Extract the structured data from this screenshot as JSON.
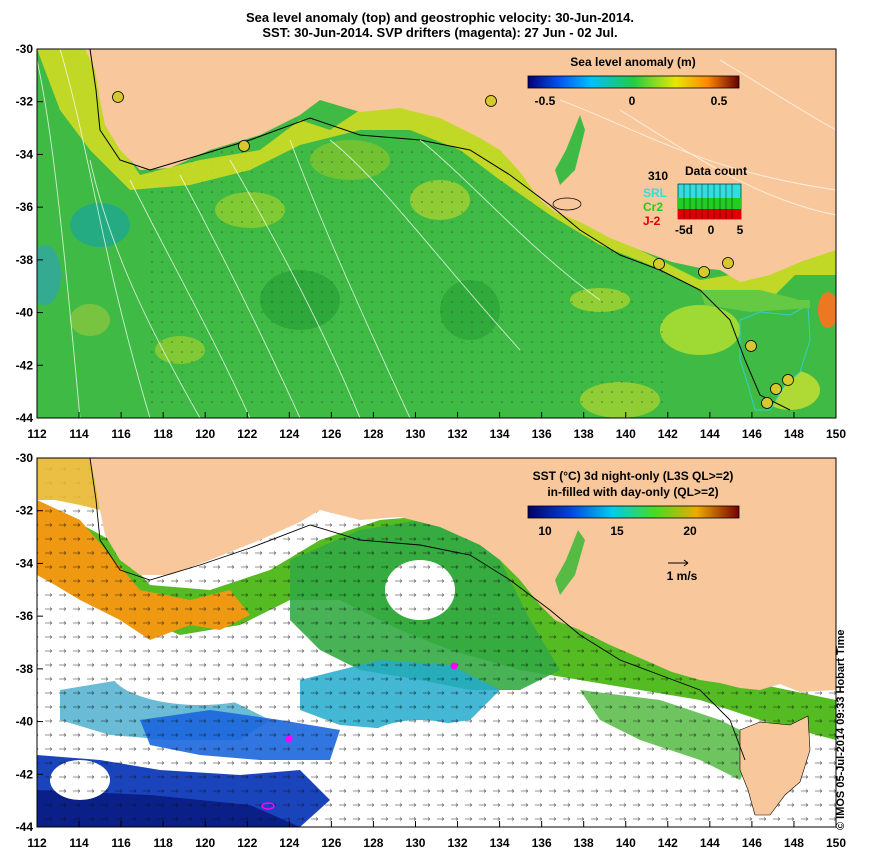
{
  "title": {
    "line1": "Sea level anomaly (top) and geostrophic velocity: 30-Jun-2014.",
    "line2": "SST: 30-Jun-2014. SVP drifters (magenta): 27 Jun - 02 Jul."
  },
  "credit": "© IMOS 05-Jul-2014 09:33 Hobart Time",
  "axes": {
    "lon_ticks": [
      "112",
      "114",
      "116",
      "118",
      "120",
      "122",
      "124",
      "126",
      "128",
      "130",
      "132",
      "134",
      "136",
      "138",
      "140",
      "142",
      "144",
      "146",
      "148",
      "150"
    ],
    "lat_ticks": [
      "-30",
      "-32",
      "-34",
      "-36",
      "-38",
      "-40",
      "-42",
      "-44"
    ],
    "lon_range": [
      112,
      150
    ],
    "lat_range": [
      -44,
      -30
    ]
  },
  "top_panel": {
    "colorbar_title": "Sea level anomaly (m)",
    "colorbar_ticks": [
      "-0.5",
      "0",
      "0.5"
    ],
    "data_count": {
      "title": "Data count",
      "max_label": "310",
      "series": [
        {
          "name": "SRL",
          "color": "#33dddd"
        },
        {
          "name": "Cr2",
          "color": "#22cc22"
        },
        {
          "name": "J-2",
          "color": "#dd0000"
        }
      ],
      "x_ticks": [
        "-5d",
        "0",
        "5"
      ]
    }
  },
  "bottom_panel": {
    "colorbar_title_line1": "SST (°C)  3d night-only (L3S QL>=2)",
    "colorbar_title_line2": "in-filled with day-only (QL>=2)",
    "colorbar_ticks": [
      "10",
      "15",
      "20"
    ],
    "velocity_scale": "1 m/s"
  },
  "colors": {
    "land": "#f8c89c",
    "no_data": "#ffffff",
    "drifters": "#ff00ff",
    "sla_mid": "#33bb44",
    "sst_cold": "#1a44bb"
  }
}
